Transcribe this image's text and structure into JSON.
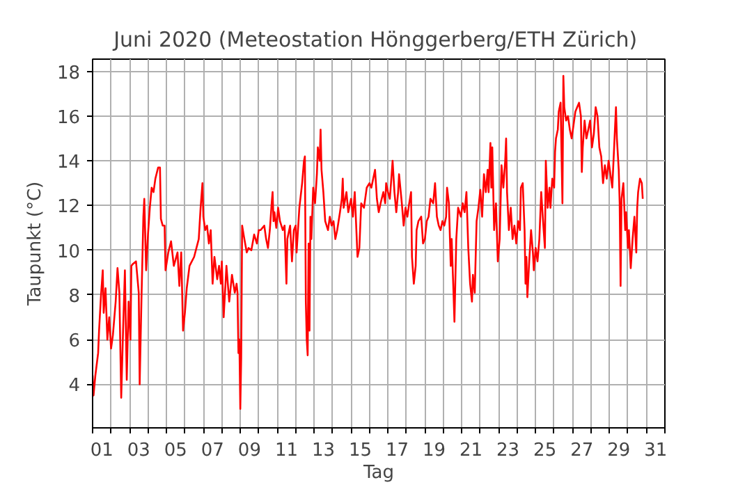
{
  "chart_data": {
    "type": "line",
    "title": "Juni 2020  (Meteostation Hönggerberg/ETH Zürich)",
    "xlabel": "Tag",
    "ylabel": "Taupunkt (°C)",
    "x": [
      0.0,
      0.05,
      0.15,
      0.3,
      0.35,
      0.45,
      0.55,
      0.6,
      0.7,
      0.8,
      0.9,
      1.0,
      1.1,
      1.25,
      1.35,
      1.45,
      1.55,
      1.65,
      1.75,
      1.85,
      1.95,
      2.05,
      2.1,
      2.2,
      2.35,
      2.5,
      2.55,
      2.65,
      2.75,
      2.8,
      2.9,
      3.0,
      3.1,
      3.2,
      3.3,
      3.4,
      3.55,
      3.65,
      3.7,
      3.8,
      3.9,
      3.95,
      4.1,
      4.25,
      4.4,
      4.6,
      4.7,
      4.8,
      4.9,
      5.0,
      5.1,
      5.25,
      5.5,
      5.75,
      5.85,
      5.95,
      6.0,
      6.1,
      6.2,
      6.3,
      6.4,
      6.5,
      6.6,
      6.75,
      6.85,
      6.95,
      7.0,
      7.1,
      7.25,
      7.4,
      7.55,
      7.7,
      7.8,
      7.85,
      7.9,
      7.95,
      8.0,
      8.05,
      8.1,
      8.2,
      8.35,
      8.45,
      8.6,
      8.75,
      8.9,
      9.0,
      9.1,
      9.3,
      9.4,
      9.5,
      9.6,
      9.7,
      9.75,
      9.8,
      9.85,
      9.95,
      10.05,
      10.15,
      10.3,
      10.4,
      10.5,
      10.55,
      10.7,
      10.8,
      10.9,
      11.0,
      11.05,
      11.2,
      11.35,
      11.45,
      11.5,
      11.55,
      11.6,
      11.65,
      11.7,
      11.75,
      11.8,
      11.85,
      11.95,
      12.05,
      12.15,
      12.2,
      12.3,
      12.35,
      12.4,
      12.5,
      12.6,
      12.75,
      12.85,
      12.95,
      13.05,
      13.15,
      13.25,
      13.4,
      13.5,
      13.55,
      13.6,
      13.75,
      13.85,
      14.0,
      14.1,
      14.2,
      14.35,
      14.45,
      14.55,
      14.7,
      14.85,
      15.0,
      15.1,
      15.2,
      15.3,
      15.4,
      15.5,
      15.6,
      15.75,
      15.85,
      15.9,
      16.0,
      16.1,
      16.2,
      16.25,
      16.35,
      16.45,
      16.55,
      16.6,
      16.75,
      16.85,
      16.95,
      17.05,
      17.15,
      17.25,
      17.3,
      17.4,
      17.5,
      17.55,
      17.65,
      17.8,
      17.9,
      18.0,
      18.1,
      18.2,
      18.3,
      18.45,
      18.55,
      18.65,
      18.75,
      18.85,
      18.95,
      19.05,
      19.15,
      19.2,
      19.3,
      19.4,
      19.45,
      19.55,
      19.6,
      19.7,
      19.8,
      19.95,
      20.05,
      20.15,
      20.25,
      20.35,
      20.45,
      20.55,
      20.6,
      20.7,
      20.8,
      20.9,
      21.0,
      21.1,
      21.2,
      21.3,
      21.4,
      21.45,
      21.55,
      21.6,
      21.65,
      21.75,
      21.85,
      21.95,
      22.05,
      22.15,
      22.25,
      22.35,
      22.4,
      22.45,
      22.55,
      22.65,
      22.75,
      22.85,
      22.95,
      23.05,
      23.15,
      23.2,
      23.3,
      23.4,
      23.45,
      23.5,
      23.55,
      23.65,
      23.75,
      23.85,
      23.9,
      24.0,
      24.1,
      24.2,
      24.3,
      24.4,
      24.5,
      24.55,
      24.65,
      24.75,
      24.8,
      24.9,
      25.0,
      25.05,
      25.1,
      25.2,
      25.25,
      25.35,
      25.45,
      25.5,
      25.55,
      25.65,
      25.75,
      25.85,
      25.95,
      26.05,
      26.15,
      26.25,
      26.35,
      26.45,
      26.5,
      26.55,
      26.65,
      26.75,
      26.85,
      26.95,
      27.05,
      27.15,
      27.25,
      27.35,
      27.45,
      27.55,
      27.65,
      27.75,
      27.85,
      27.95,
      28.05,
      28.15,
      28.25,
      28.35,
      28.4,
      28.5,
      28.55,
      28.6,
      28.65,
      28.75,
      28.85,
      28.9,
      29.0,
      29.05,
      29.15,
      29.25,
      29.35,
      29.45,
      29.5,
      29.55,
      29.65,
      29.75,
      29.8
    ],
    "series": [
      {
        "color": "#ff0000",
        "values": [
          4.4,
          3.5,
          4.4,
          5.4,
          6.4,
          7.9,
          9.1,
          7.2,
          8.3,
          6.0,
          7.0,
          5.6,
          6.2,
          7.7,
          9.2,
          8.1,
          3.4,
          6.4,
          9.1,
          4.2,
          7.7,
          6.0,
          9.3,
          9.4,
          9.5,
          8.1,
          4.0,
          7.9,
          11.5,
          12.3,
          9.1,
          10.7,
          11.9,
          12.8,
          12.6,
          13.2,
          13.7,
          13.7,
          11.4,
          11.1,
          11.1,
          9.1,
          9.9,
          10.4,
          9.3,
          9.9,
          8.4,
          9.9,
          6.4,
          7.2,
          8.3,
          9.3,
          9.7,
          10.5,
          11.9,
          13.0,
          11.5,
          10.9,
          11.1,
          10.3,
          10.9,
          8.5,
          9.7,
          8.7,
          9.3,
          8.5,
          9.5,
          7.0,
          9.3,
          7.7,
          8.9,
          8.1,
          8.5,
          8.1,
          5.4,
          6.0,
          2.9,
          5.2,
          11.1,
          10.6,
          9.9,
          10.1,
          10.0,
          10.7,
          10.3,
          10.9,
          10.9,
          11.1,
          10.5,
          10.1,
          10.9,
          12.1,
          12.6,
          11.3,
          11.7,
          11.0,
          11.9,
          11.3,
          10.9,
          11.1,
          8.5,
          10.5,
          11.1,
          9.5,
          10.9,
          11.1,
          9.9,
          11.9,
          13.0,
          14.0,
          14.2,
          7.7,
          6.0,
          5.3,
          10.3,
          6.4,
          11.5,
          10.5,
          12.8,
          12.1,
          13.4,
          14.6,
          14.0,
          15.4,
          13.6,
          12.6,
          11.3,
          10.9,
          11.5,
          11.1,
          11.3,
          10.5,
          10.9,
          11.7,
          12.3,
          13.2,
          11.9,
          12.6,
          11.7,
          12.3,
          11.5,
          12.6,
          9.7,
          10.1,
          12.1,
          11.9,
          12.8,
          13.0,
          12.8,
          13.2,
          13.6,
          12.3,
          11.7,
          12.1,
          12.6,
          12.1,
          13.0,
          12.6,
          12.3,
          13.4,
          14.0,
          12.6,
          11.7,
          12.6,
          13.4,
          12.1,
          11.1,
          11.9,
          11.5,
          12.1,
          12.6,
          9.7,
          8.5,
          9.3,
          10.9,
          11.3,
          11.5,
          10.3,
          10.5,
          11.3,
          11.5,
          12.3,
          12.1,
          13.0,
          11.5,
          11.1,
          10.9,
          11.3,
          11.1,
          11.5,
          12.8,
          12.1,
          9.3,
          10.5,
          8.1,
          6.8,
          10.5,
          11.9,
          11.5,
          12.1,
          11.7,
          12.6,
          10.1,
          8.5,
          7.7,
          8.9,
          8.1,
          11.3,
          11.9,
          12.7,
          11.5,
          13.4,
          12.6,
          13.6,
          12.6,
          14.8,
          12.8,
          14.6,
          10.9,
          12.1,
          9.5,
          10.5,
          13.8,
          12.8,
          14.0,
          15.0,
          12.6,
          10.9,
          11.9,
          10.5,
          11.1,
          10.3,
          11.3,
          10.9,
          12.8,
          13.0,
          10.9,
          8.5,
          9.7,
          7.9,
          9.5,
          10.9,
          9.9,
          9.1,
          10.1,
          9.5,
          10.5,
          12.6,
          11.3,
          10.1,
          14.0,
          11.9,
          12.8,
          11.9,
          13.2,
          12.8,
          14.4,
          15.0,
          15.4,
          16.2,
          16.6,
          12.1,
          17.8,
          16.4,
          15.8,
          16.0,
          15.4,
          15.0,
          15.6,
          16.2,
          16.4,
          16.6,
          16.0,
          13.5,
          14.6,
          15.8,
          15.0,
          15.4,
          15.8,
          14.6,
          15.2,
          16.4,
          16.0,
          14.6,
          14.2,
          13.0,
          13.8,
          13.2,
          14.0,
          13.4,
          12.8,
          14.6,
          16.4,
          15.0,
          13.6,
          12.1,
          8.4,
          12.3,
          13.0,
          10.9,
          11.7,
          10.1,
          10.9,
          9.2,
          10.5,
          11.5,
          9.9,
          11.9,
          12.6,
          13.2,
          13.0,
          12.3
        ]
      }
    ],
    "xlim": [
      0,
      31
    ],
    "ylim": [
      2.05,
      18.55
    ],
    "xticks": [
      {
        "value": 0,
        "label": null
      },
      {
        "value": 0.5,
        "label": "01"
      },
      {
        "value": 1,
        "label": null
      },
      {
        "value": 2,
        "label": null
      },
      {
        "value": 2.5,
        "label": "03"
      },
      {
        "value": 3,
        "label": null
      },
      {
        "value": 4,
        "label": null
      },
      {
        "value": 4.5,
        "label": "05"
      },
      {
        "value": 5,
        "label": null
      },
      {
        "value": 6,
        "label": null
      },
      {
        "value": 6.5,
        "label": "07"
      },
      {
        "value": 7,
        "label": null
      },
      {
        "value": 8,
        "label": null
      },
      {
        "value": 8.5,
        "label": "09"
      },
      {
        "value": 9,
        "label": null
      },
      {
        "value": 10,
        "label": null
      },
      {
        "value": 10.5,
        "label": "11"
      },
      {
        "value": 11,
        "label": null
      },
      {
        "value": 12,
        "label": null
      },
      {
        "value": 12.5,
        "label": "13"
      },
      {
        "value": 13,
        "label": null
      },
      {
        "value": 14,
        "label": null
      },
      {
        "value": 14.5,
        "label": "15"
      },
      {
        "value": 15,
        "label": null
      },
      {
        "value": 16,
        "label": null
      },
      {
        "value": 16.5,
        "label": "17"
      },
      {
        "value": 17,
        "label": null
      },
      {
        "value": 18,
        "label": null
      },
      {
        "value": 18.5,
        "label": "19"
      },
      {
        "value": 19,
        "label": null
      },
      {
        "value": 20,
        "label": null
      },
      {
        "value": 20.5,
        "label": "21"
      },
      {
        "value": 21,
        "label": null
      },
      {
        "value": 22,
        "label": null
      },
      {
        "value": 22.5,
        "label": "23"
      },
      {
        "value": 23,
        "label": null
      },
      {
        "value": 24,
        "label": null
      },
      {
        "value": 24.5,
        "label": "25"
      },
      {
        "value": 25,
        "label": null
      },
      {
        "value": 26,
        "label": null
      },
      {
        "value": 26.5,
        "label": "27"
      },
      {
        "value": 27,
        "label": null
      },
      {
        "value": 28,
        "label": null
      },
      {
        "value": 28.5,
        "label": "29"
      },
      {
        "value": 29,
        "label": null
      },
      {
        "value": 30,
        "label": null
      },
      {
        "value": 30.5,
        "label": "31"
      },
      {
        "value": 31,
        "label": null
      }
    ],
    "yticks": [
      4,
      6,
      8,
      10,
      12,
      14,
      16,
      18
    ],
    "grid": true,
    "line_style": "solid"
  }
}
